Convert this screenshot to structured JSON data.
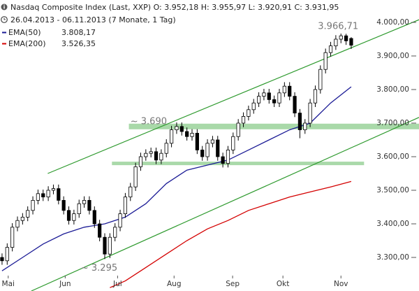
{
  "chart_data": {
    "type": "candlestick",
    "title": "Nasdaq Composite Index (Last, XXP)  O: 3.952,18  H: 3.955,97  L: 3.920,91  C: 3.931,95",
    "subtitle": "26.04.2013 - 06.11.2013 (7 Monate, 1 Tag)",
    "xlim": [
      -0.4,
      81.2
    ],
    "ylim": [
      3200,
      4066.7
    ],
    "xticks": [
      {
        "value": 1.2,
        "label": "Mai"
      },
      {
        "value": 12.3,
        "label": "Jun"
      },
      {
        "value": 22.5,
        "label": "Jul"
      },
      {
        "value": 33.5,
        "label": "Aug"
      },
      {
        "value": 44.9,
        "label": "Sep"
      },
      {
        "value": 54.7,
        "label": "Okt"
      },
      {
        "value": 66,
        "label": "Nov"
      }
    ],
    "yticks": [
      {
        "value": 3300,
        "label": "3.300,00"
      },
      {
        "value": 3400,
        "label": "3.400,00"
      },
      {
        "value": 3500,
        "label": "3.500,00"
      },
      {
        "value": 3600,
        "label": "3.600,00"
      },
      {
        "value": 3700,
        "label": "3.700,00"
      },
      {
        "value": 3800,
        "label": "3.800,00"
      },
      {
        "value": 3900,
        "label": "3.900,00"
      },
      {
        "value": 4000,
        "label": "4.000,00"
      }
    ],
    "candle_color": "#000000",
    "open": [
      3300,
      3290,
      3330,
      3390,
      3410,
      3420,
      3440,
      3470,
      3490,
      3480,
      3500,
      3505,
      3470,
      3440,
      3410,
      3430,
      3460,
      3470,
      3440,
      3400,
      3360,
      3310,
      3360,
      3390,
      3430,
      3480,
      3510,
      3570,
      3600,
      3610,
      3615,
      3590,
      3610,
      3640,
      3680,
      3690,
      3675,
      3660,
      3670,
      3620,
      3600,
      3640,
      3650,
      3600,
      3580,
      3620,
      3660,
      3700,
      3720,
      3740,
      3760,
      3780,
      3790,
      3770,
      3760,
      3790,
      3810,
      3780,
      3730,
      3680,
      3700,
      3760,
      3800,
      3860,
      3910,
      3930,
      3950,
      3960,
      3952.18
    ],
    "high": [
      3312,
      3342,
      3402,
      3422,
      3432,
      3452,
      3482,
      3502,
      3502,
      3512,
      3517,
      3517,
      3482,
      3452,
      3442,
      3472,
      3482,
      3482,
      3452,
      3412,
      3372,
      3372,
      3402,
      3442,
      3492,
      3522,
      3582,
      3612,
      3622,
      3627,
      3627,
      3622,
      3652,
      3692,
      3702,
      3702,
      3687,
      3682,
      3682,
      3632,
      3652,
      3662,
      3662,
      3612,
      3632,
      3672,
      3712,
      3732,
      3752,
      3772,
      3792,
      3802,
      3802,
      3782,
      3802,
      3822,
      3822,
      3792,
      3742,
      3712,
      3772,
      3812,
      3872,
      3922,
      3942,
      3962,
      3966.71,
      3966,
      3955.97
    ],
    "low": [
      3278,
      3278,
      3318,
      3378,
      3398,
      3408,
      3428,
      3458,
      3468,
      3468,
      3488,
      3458,
      3428,
      3398,
      3398,
      3418,
      3448,
      3428,
      3388,
      3348,
      3295,
      3298,
      3348,
      3378,
      3418,
      3468,
      3498,
      3558,
      3588,
      3598,
      3578,
      3578,
      3598,
      3628,
      3668,
      3663,
      3648,
      3648,
      3608,
      3588,
      3588,
      3628,
      3588,
      3568,
      3568,
      3608,
      3648,
      3688,
      3708,
      3728,
      3748,
      3768,
      3758,
      3748,
      3748,
      3778,
      3768,
      3718,
      3655,
      3668,
      3688,
      3748,
      3788,
      3848,
      3898,
      3918,
      3938,
      3933,
      3920.91
    ],
    "close": [
      3290,
      3330,
      3390,
      3410,
      3420,
      3440,
      3470,
      3490,
      3480,
      3500,
      3505,
      3470,
      3440,
      3410,
      3430,
      3460,
      3470,
      3440,
      3400,
      3360,
      3310,
      3360,
      3390,
      3430,
      3480,
      3510,
      3570,
      3600,
      3610,
      3615,
      3590,
      3610,
      3640,
      3680,
      3690,
      3675,
      3660,
      3670,
      3620,
      3600,
      3640,
      3650,
      3600,
      3580,
      3620,
      3660,
      3700,
      3720,
      3740,
      3760,
      3780,
      3790,
      3770,
      3760,
      3790,
      3810,
      3780,
      3730,
      3680,
      3700,
      3760,
      3800,
      3860,
      3910,
      3930,
      3950,
      3960,
      3945,
      3931.95
    ],
    "series": [
      {
        "name": "EMA(50)",
        "color": "#1c1c96",
        "last_label": "3.808,17",
        "x": [
          0,
          4,
          8,
          12,
          16,
          20,
          24,
          28,
          32,
          36,
          40,
          44,
          48,
          52,
          56,
          60,
          64,
          68
        ],
        "values": [
          3260,
          3300,
          3340,
          3370,
          3390,
          3400,
          3420,
          3460,
          3520,
          3560,
          3575,
          3590,
          3620,
          3650,
          3680,
          3700,
          3760,
          3808.17
        ]
      },
      {
        "name": "EMA(200)",
        "color": "#d40000",
        "last_label": "3.526,35",
        "x": [
          21,
          24,
          28,
          32,
          36,
          40,
          44,
          48,
          52,
          56,
          60,
          64,
          68
        ],
        "values": [
          3210,
          3230,
          3270,
          3310,
          3350,
          3385,
          3410,
          3440,
          3460,
          3480,
          3495,
          3510,
          3526.35
        ]
      }
    ],
    "trendlines": {
      "color": "#2e9a2e",
      "lines": [
        {
          "x": [
            8.9,
            81.2
          ],
          "values": [
            3550,
            4008
          ]
        },
        {
          "x": [
            5.7,
            81.2
          ],
          "values": [
            3200,
            3717
          ]
        }
      ]
    },
    "bands": {
      "color": "#a9d9a9",
      "items": [
        {
          "value": 3690,
          "x": [
            24.7,
            81.2
          ]
        },
        {
          "value": 3580,
          "x": [
            21.4,
            70.5
          ]
        }
      ]
    },
    "annotations": [
      {
        "text": "3.966,71",
        "value": 3966.71,
        "x": 66
      },
      {
        "text": "~ 3.690",
        "value": 3690,
        "x": 25
      },
      {
        "text": "~ 3.295",
        "value": 3295,
        "x": 20
      }
    ]
  }
}
